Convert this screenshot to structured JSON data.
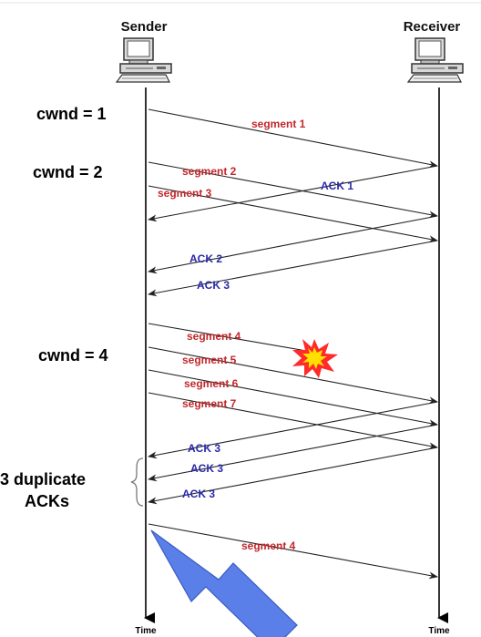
{
  "sender_label": "Sender",
  "receiver_label": "Receiver",
  "time_label_left": "Time",
  "time_label_right": "Time",
  "cwnd_labels": [
    "cwnd = 1",
    "cwnd = 2",
    "cwnd = 4"
  ],
  "duplicate_label": [
    "3 duplicate",
    "ACKs"
  ],
  "segments": [
    "segment 1",
    "segment 2",
    "segment 3",
    "segment 4",
    "segment 5",
    "segment 6",
    "segment 7",
    "segment 4"
  ],
  "acks": [
    "ACK 1",
    "ACK 2",
    "ACK 3",
    "ACK 3",
    "ACK 3",
    "ACK 3"
  ],
  "colors": {
    "segment": "#c0282d",
    "ack": "#2a2aa8",
    "arrow": "#4f74e0",
    "burst": "#ff2a2a",
    "burst_core": "#ffe000"
  },
  "icons": [
    "computer-icon",
    "loss-burst-icon",
    "big-arrow-icon"
  ]
}
